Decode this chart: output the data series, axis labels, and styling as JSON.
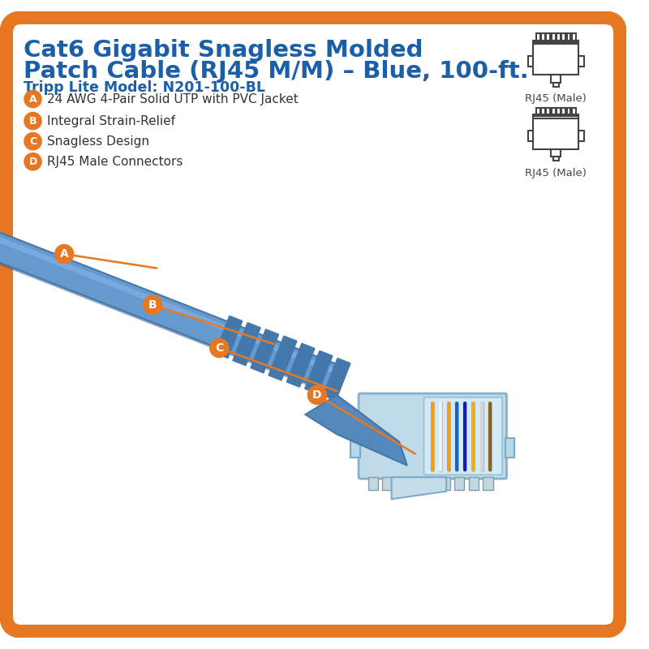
{
  "title_line1": "Cat6 Gigabit Snagless Molded",
  "title_line2": "Patch Cable (RJ45 M/M) – Blue, 100-ft.",
  "subtitle": "Tripp Lite Model: N201-100-BL",
  "features": [
    {
      "label": "A",
      "text": "24 AWG 4-Pair Solid UTP with PVC Jacket"
    },
    {
      "label": "B",
      "text": "Integral Strain-Relief"
    },
    {
      "label": "C",
      "text": "Snagless Design"
    },
    {
      "label": "D",
      "text": "RJ45 Male Connectors"
    }
  ],
  "rj45_label": "RJ45 (Male)",
  "title_color": "#1a5fa8",
  "subtitle_color": "#1a5fa8",
  "feature_label_bg": "#e87722",
  "feature_label_color": "#ffffff",
  "feature_text_color": "#333333",
  "border_color": "#e87722",
  "background_color": "#ffffff",
  "annotation_line_color": "#e87722",
  "annotation_label_bg": "#e87722",
  "annotation_label_color": "#ffffff",
  "connector_outline_color": "#444444",
  "cable_main_color": "#6699cc",
  "cable_dark_color": "#4477aa",
  "cable_highlight_color": "#88bbee",
  "cable_shadow_color": "#335588",
  "connector_body_color": "#aaccdd",
  "connector_clear_color": "#ddeeff",
  "snagless_color": "#5588bb",
  "strain_relief_color": "#4477aa"
}
